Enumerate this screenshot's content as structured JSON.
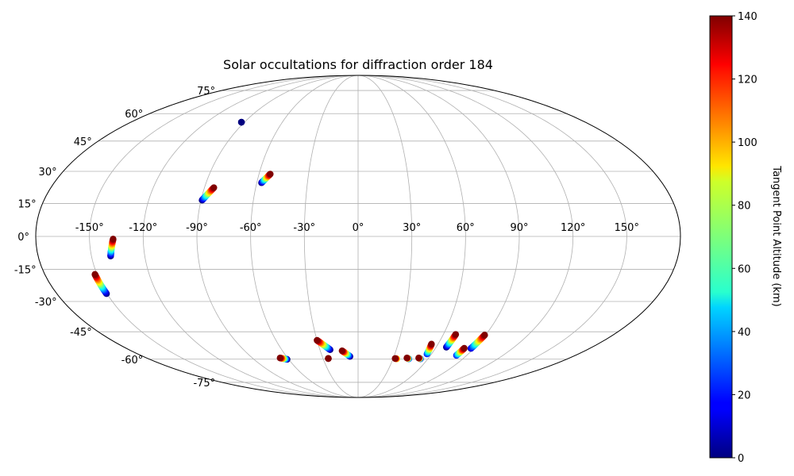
{
  "chart_data": {
    "type": "scatter",
    "projection": "mollweide",
    "title": "Solar occultations for diffraction order 184",
    "grid": true,
    "xticks": [
      -150,
      -120,
      -90,
      -60,
      -30,
      0,
      30,
      60,
      90,
      120,
      150
    ],
    "xtick_labels": [
      "-150°",
      "-120°",
      "-90°",
      "-60°",
      "-30°",
      "0°",
      "30°",
      "60°",
      "90°",
      "120°",
      "150°"
    ],
    "yticks": [
      -75,
      -60,
      -45,
      -30,
      -15,
      0,
      15,
      30,
      45,
      60,
      75
    ],
    "ytick_labels": [
      "-75°",
      "-60°",
      "-45°",
      "-30°",
      "-15°",
      "0°",
      "15°",
      "30°",
      "45°",
      "60°",
      "75°"
    ],
    "colorbar": {
      "label": "Tangent Point Altitude (km)",
      "range": [
        0,
        140
      ],
      "ticks": [
        0,
        20,
        40,
        60,
        80,
        100,
        120,
        140
      ],
      "tick_labels": [
        "0",
        "20",
        "40",
        "60",
        "80",
        "100",
        "120",
        "140"
      ],
      "colormap": "jet"
    },
    "tracks": [
      {
        "lon_start": -92.4,
        "lat_start": 55.1,
        "lon_end": -92.4,
        "lat_end": 55.1,
        "alt_start": 0,
        "alt_end": 0
      },
      {
        "lon_start": -89.4,
        "lat_start": 16.5,
        "lon_end": -84.5,
        "lat_end": 22.3,
        "alt_start": 0,
        "alt_end": 140
      },
      {
        "lon_start": -57.2,
        "lat_start": 24.6,
        "lon_end": -53.2,
        "lat_end": 28.7,
        "alt_start": 0,
        "alt_end": 140
      },
      {
        "lon_start": -139.2,
        "lat_start": -8.9,
        "lon_end": -136.8,
        "lat_end": -1.2,
        "alt_start": 0,
        "alt_end": 140
      },
      {
        "lon_start": -150.3,
        "lat_start": -26.3,
        "lon_end": -151.2,
        "lat_end": -17.3,
        "alt_start": 0,
        "alt_end": 140
      },
      {
        "lon_start": -61.4,
        "lat_start": -60.1,
        "lon_end": -66.4,
        "lat_end": -59.3,
        "alt_start": 0,
        "alt_end": 140
      },
      {
        "lon_start": -22.0,
        "lat_start": -54.6,
        "lon_end": -30.0,
        "lat_end": -49.5,
        "alt_start": 0,
        "alt_end": 140
      },
      {
        "lon_start": -25.5,
        "lat_start": -59.6,
        "lon_end": -25.5,
        "lat_end": -59.6,
        "alt_start": 140,
        "alt_end": 140
      },
      {
        "lon_start": -6.8,
        "lat_start": -58.4,
        "lon_end": -12.7,
        "lat_end": -55.2,
        "alt_start": 0,
        "alt_end": 140
      },
      {
        "lon_start": 33.3,
        "lat_start": -59.8,
        "lon_end": 31.7,
        "lat_end": -59.6,
        "alt_start": 80,
        "alt_end": 140
      },
      {
        "lon_start": 43.6,
        "lat_start": -59.8,
        "lon_end": 41.6,
        "lat_end": -59.3,
        "alt_start": 20,
        "alt_end": 140
      },
      {
        "lon_start": 53.6,
        "lat_start": -59.8,
        "lon_end": 51.6,
        "lat_end": -59.3,
        "alt_start": 10,
        "alt_end": 140
      },
      {
        "lon_start": 56.3,
        "lat_start": -57.0,
        "lon_end": 55.1,
        "lat_end": -51.5,
        "alt_start": 20,
        "alt_end": 140
      },
      {
        "lon_start": 67.9,
        "lat_start": -53.2,
        "lon_end": 68.7,
        "lat_end": -46.4,
        "alt_start": 0,
        "alt_end": 140
      },
      {
        "lon_start": 81.5,
        "lat_start": -57.8,
        "lon_end": 82.4,
        "lat_end": -53.8,
        "alt_start": 20,
        "alt_end": 140
      },
      {
        "lon_start": 87.7,
        "lat_start": -53.9,
        "lon_end": 89.4,
        "lat_end": -46.7,
        "alt_start": 10,
        "alt_end": 140
      }
    ]
  }
}
